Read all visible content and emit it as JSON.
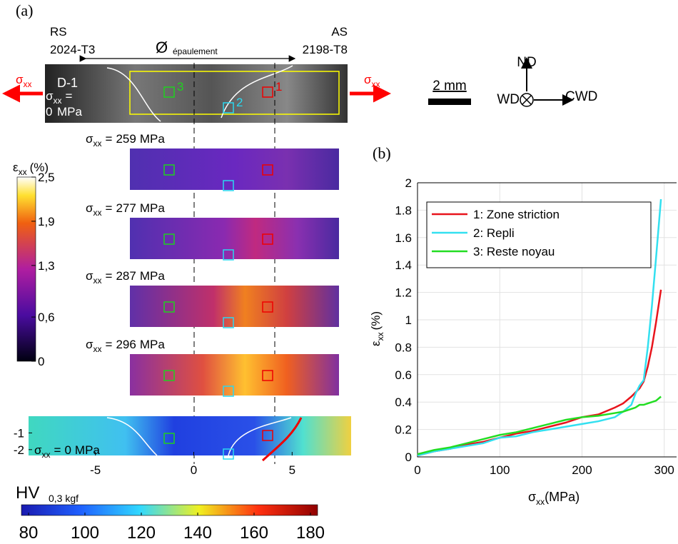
{
  "panel_a": {
    "label": "(a)",
    "rs": "RS",
    "rs_alloy": "2024-T3",
    "as": "AS",
    "as_alloy": "2198-T8",
    "diameter": "Ø",
    "diameter_sub": "épaulement",
    "specimen": "D-1",
    "sigma": "σ",
    "sigma_sub": "xx",
    "equals": "=",
    "unit": "MPa",
    "stresses": [
      0,
      259,
      277,
      287,
      296
    ],
    "zones": [
      "1",
      "2",
      "3"
    ],
    "strain_bar": {
      "symbol": "ε",
      "sub": "xx",
      "unit": "(%)",
      "lim": [
        0,
        2.5
      ],
      "ticks": [
        0,
        {
          "value": 0.6,
          "label": "0,6"
        },
        {
          "value": 1.3,
          "label": "1,3"
        },
        {
          "value": 1.9,
          "label": "1,9"
        },
        {
          "value": 2.5,
          "label": "2,5"
        }
      ]
    },
    "hv_map": {
      "xlim": [
        -8.4,
        8.0
      ],
      "xticks": [
        -5,
        0,
        5
      ],
      "ylim": [
        -2.35,
        0
      ],
      "yticks": [
        -1,
        -2
      ]
    },
    "hv_bar": {
      "label": "HV",
      "sub": "0,3 kgf",
      "lim": [
        80,
        180
      ],
      "ticks": [
        80,
        100,
        120,
        140,
        160,
        180
      ]
    },
    "orientation": {
      "nd": "ND",
      "wd": "WD",
      "cwd": "CWD",
      "scale": "2 mm"
    }
  },
  "chart_data": {
    "type": "line",
    "title": "(b)",
    "xlabel": {
      "symbol": "σ",
      "sub": "xx",
      "unit": "(MPa)"
    },
    "ylabel": {
      "symbol": "ε",
      "sub": "xx",
      "unit": "(%)"
    },
    "x": [
      0,
      20,
      40,
      60,
      80,
      100,
      120,
      140,
      160,
      180,
      200,
      220,
      240,
      250,
      260,
      265,
      270,
      275,
      280,
      285,
      290,
      296
    ],
    "series": [
      {
        "name": "1: Zone striction",
        "color": "#e8141c",
        "values": [
          0.01,
          0.04,
          0.06,
          0.09,
          0.11,
          0.14,
          0.17,
          0.19,
          0.22,
          0.25,
          0.29,
          0.31,
          0.36,
          0.39,
          0.44,
          0.47,
          0.5,
          0.55,
          0.66,
          0.8,
          0.98,
          1.22
        ]
      },
      {
        "name": "2: Repli",
        "color": "#33e0f0",
        "values": [
          0.01,
          0.04,
          0.06,
          0.08,
          0.1,
          0.14,
          0.15,
          0.18,
          0.2,
          0.22,
          0.24,
          0.26,
          0.29,
          0.33,
          0.38,
          0.46,
          0.52,
          0.56,
          0.8,
          1.1,
          1.45,
          1.88
        ]
      },
      {
        "name": "3: Reste noyau",
        "color": "#22dd22",
        "values": [
          0.02,
          0.05,
          0.07,
          0.1,
          0.13,
          0.16,
          0.18,
          0.21,
          0.24,
          0.27,
          0.29,
          0.3,
          0.32,
          0.33,
          0.35,
          0.36,
          0.38,
          0.38,
          0.39,
          0.4,
          0.41,
          0.44
        ]
      }
    ],
    "xlim": [
      0,
      315
    ],
    "xticks": [
      0,
      100,
      200,
      300
    ],
    "ylim": [
      0,
      2
    ],
    "yticks": [
      0,
      0.2,
      0.4,
      0.6,
      0.8,
      1,
      1.2,
      1.4,
      1.6,
      1.8,
      2
    ],
    "grid": true,
    "legend": "upper left"
  }
}
